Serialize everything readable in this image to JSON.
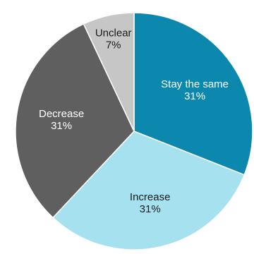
{
  "chart_data": {
    "type": "pie",
    "slices": [
      {
        "label": "Stay the same",
        "value": 31,
        "value_label": "31%",
        "color": "#0c87ad",
        "text_color": "#ffffff"
      },
      {
        "label": "Increase",
        "value": 31,
        "value_label": "31%",
        "color": "#a6e1ef",
        "text_color": "#1a1a1a"
      },
      {
        "label": "Decrease",
        "value": 31,
        "value_label": "31%",
        "color": "#5f5f5f",
        "text_color": "#ffffff"
      },
      {
        "label": "Unclear",
        "value": 7,
        "value_label": "7%",
        "color": "#c6c6c6",
        "text_color": "#1a1a1a"
      }
    ],
    "start_angle_deg": 0,
    "direction": "clockwise",
    "slice_border_color": "#ffffff"
  }
}
